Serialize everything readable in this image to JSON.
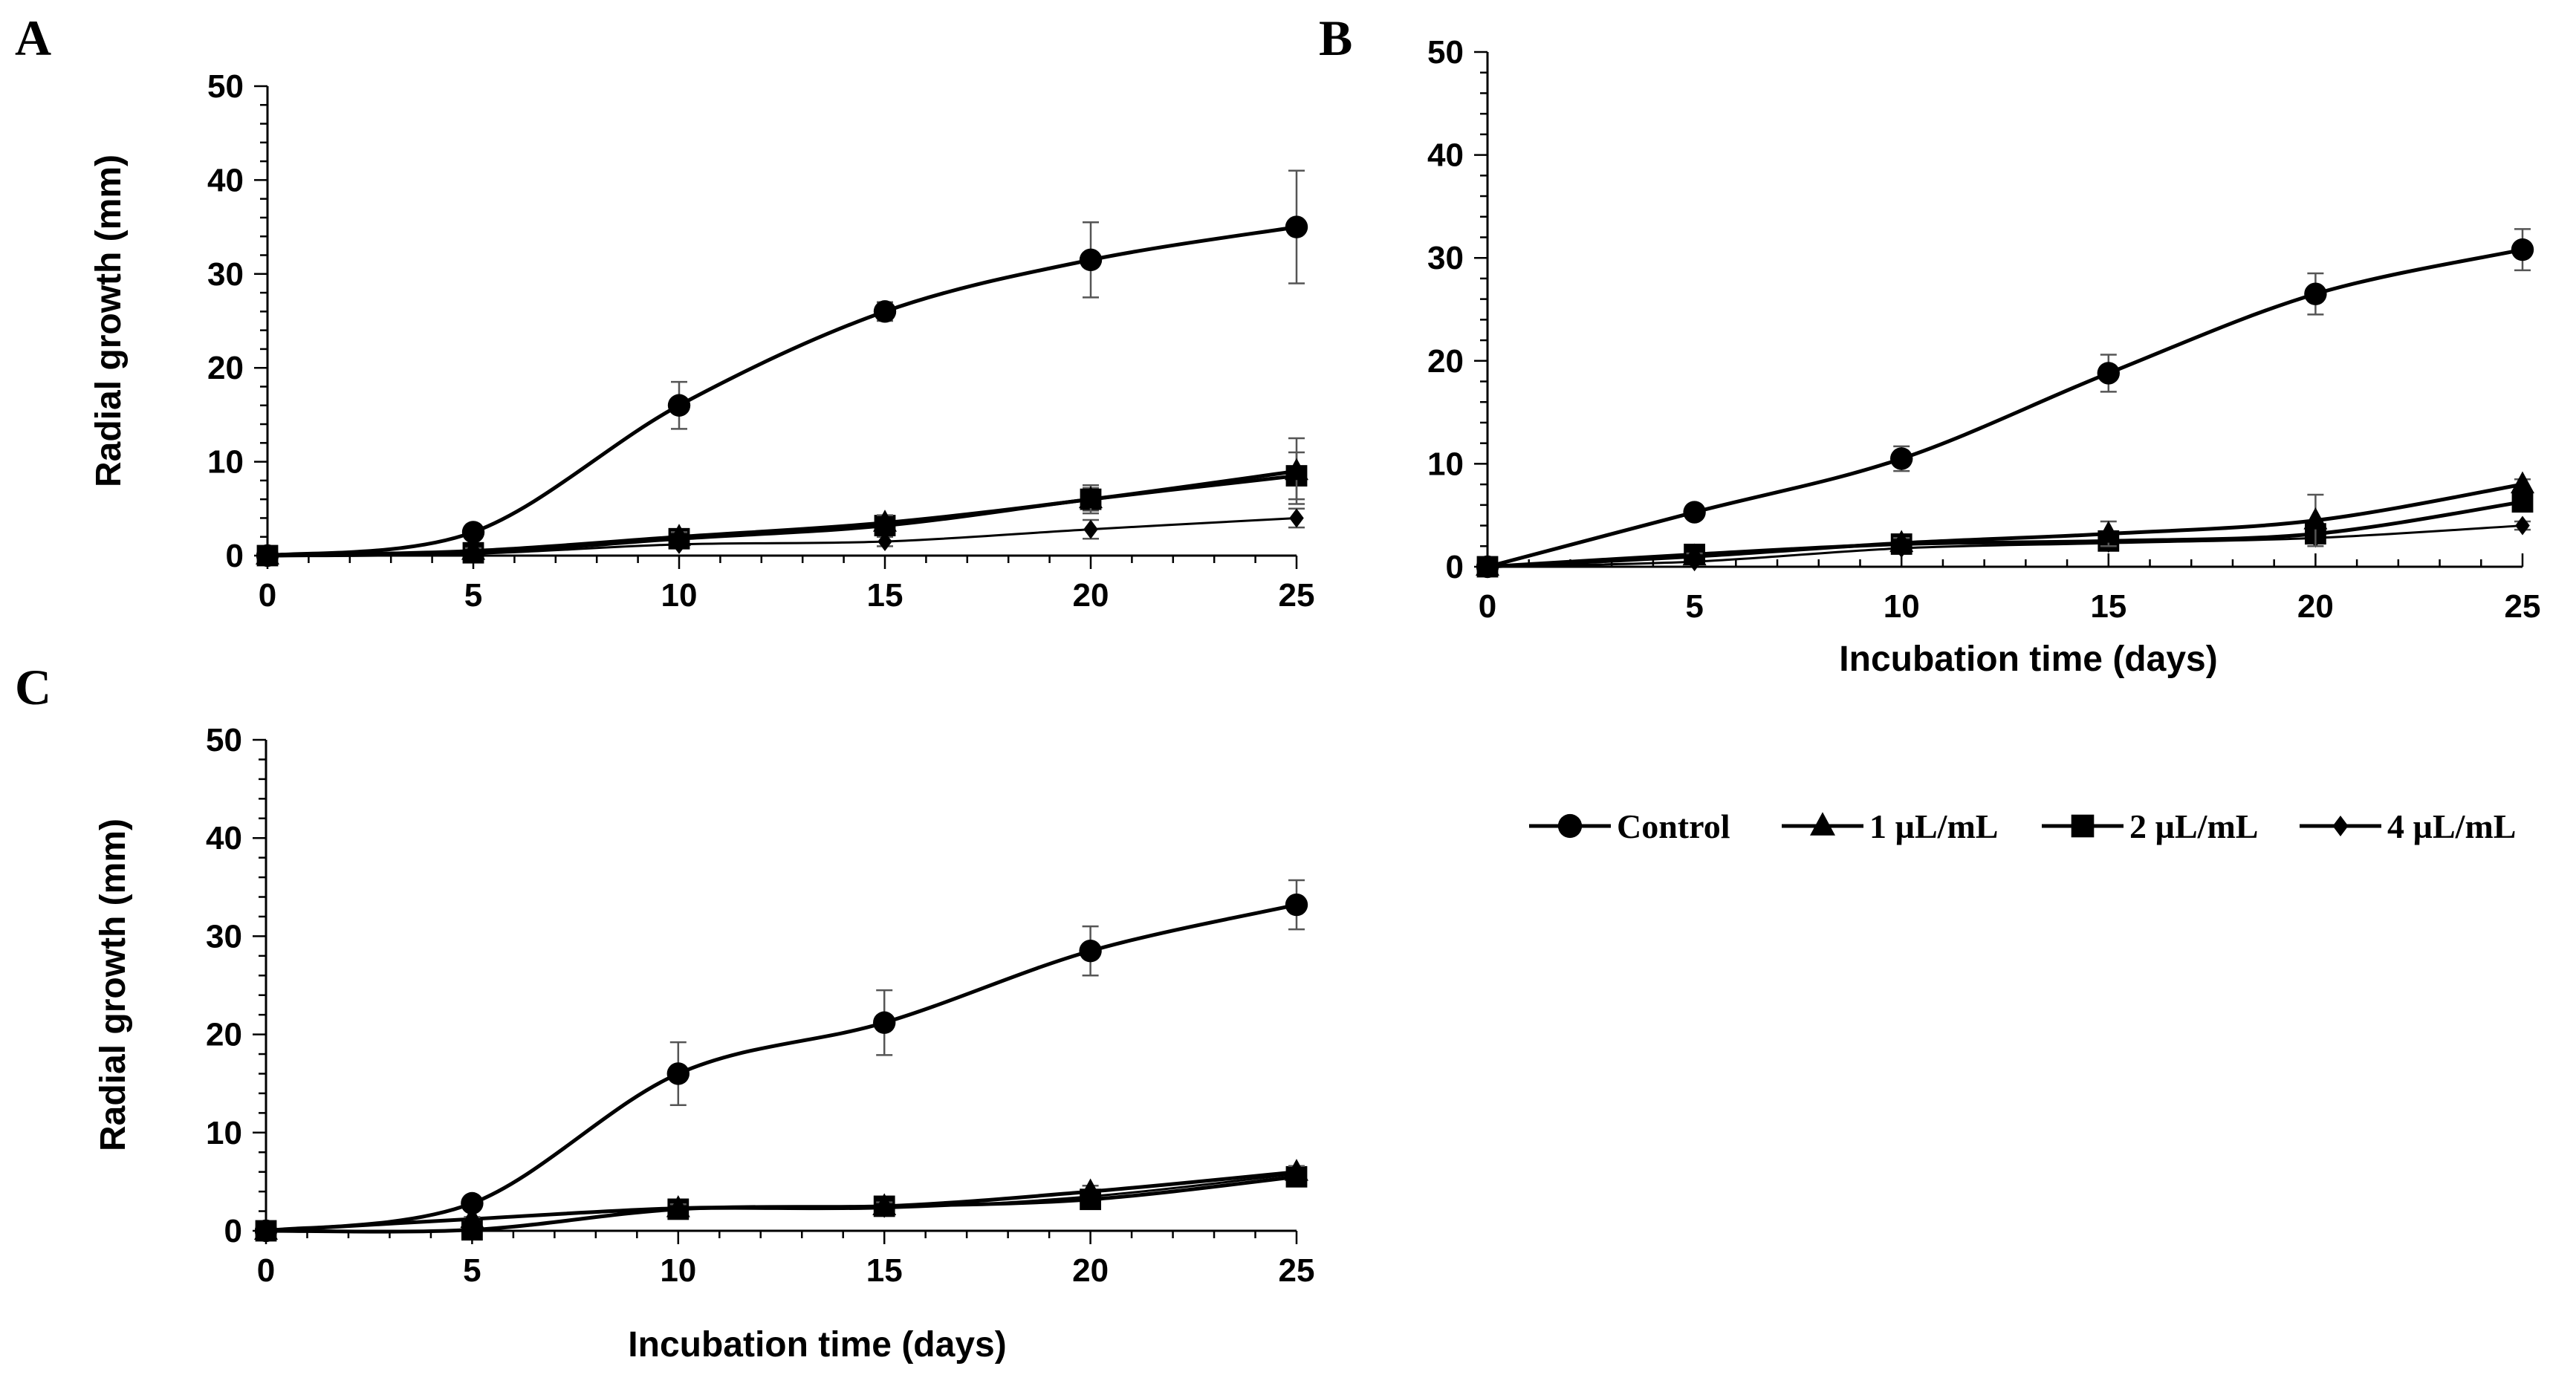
{
  "chart_data": [
    {
      "panel": "A",
      "type": "line",
      "xlabel": "",
      "ylabel": "Radial growth (mm)",
      "xlim": [
        0,
        25
      ],
      "ylim": [
        0,
        50
      ],
      "x": [
        0,
        5,
        10,
        15,
        20,
        25
      ],
      "xticks": [
        "0",
        "5",
        "10",
        "15",
        "20",
        "25"
      ],
      "yticks": [
        "0",
        "10",
        "20",
        "30",
        "40",
        "50"
      ],
      "series": [
        {
          "name": "Control",
          "marker": "circle",
          "stroke": 5,
          "values": [
            0,
            2.5,
            16,
            26,
            31.5,
            35
          ],
          "errors": [
            0,
            0.5,
            2.5,
            1,
            4,
            6
          ]
        },
        {
          "name": "1 µL/mL",
          "marker": "triangle",
          "stroke": 5,
          "values": [
            0,
            0.5,
            2,
            3.5,
            6,
            9
          ],
          "errors": [
            0,
            0.3,
            0.5,
            0.8,
            1.5,
            3.5
          ]
        },
        {
          "name": "2 µL/mL",
          "marker": "square",
          "stroke": 5,
          "values": [
            0,
            0.3,
            1.8,
            3.2,
            6,
            8.5
          ],
          "errors": [
            0,
            0.3,
            0.5,
            0.8,
            1.2,
            2.5
          ]
        },
        {
          "name": "4 µL/mL",
          "marker": "diamond",
          "stroke": 3,
          "values": [
            0,
            0.2,
            1.2,
            1.5,
            2.8,
            4
          ],
          "errors": [
            0,
            0.2,
            0.3,
            0.5,
            1,
            1
          ]
        }
      ]
    },
    {
      "panel": "B",
      "type": "line",
      "xlabel": "Incubation time (days)",
      "ylabel": "",
      "xlim": [
        0,
        25
      ],
      "ylim": [
        0,
        50
      ],
      "x": [
        0,
        5,
        10,
        15,
        20,
        25
      ],
      "xticks": [
        "0",
        "5",
        "10",
        "15",
        "20",
        "25"
      ],
      "yticks": [
        "0",
        "10",
        "20",
        "30",
        "40",
        "50"
      ],
      "series": [
        {
          "name": "Control",
          "marker": "circle",
          "stroke": 5,
          "values": [
            0,
            5.3,
            10.5,
            18.8,
            26.5,
            30.8
          ],
          "errors": [
            0,
            0.5,
            1.2,
            1.8,
            2,
            2
          ]
        },
        {
          "name": "1 µL/mL",
          "marker": "triangle",
          "stroke": 5,
          "values": [
            0,
            1,
            2.3,
            3.2,
            4.5,
            8
          ],
          "errors": [
            0,
            0.3,
            0.5,
            1.2,
            2.5,
            0.5
          ]
        },
        {
          "name": "2 µL/mL",
          "marker": "square",
          "stroke": 5,
          "values": [
            0,
            1.2,
            2.2,
            2.5,
            3.2,
            6.3
          ],
          "errors": [
            0,
            0.3,
            0.5,
            0.8,
            0.8,
            0.8
          ]
        },
        {
          "name": "4 µL/mL",
          "marker": "diamond",
          "stroke": 3,
          "values": [
            0,
            0.5,
            1.8,
            2.3,
            2.8,
            4
          ],
          "errors": [
            0,
            0.2,
            0.3,
            0.5,
            0.5,
            0.4
          ]
        }
      ]
    },
    {
      "panel": "C",
      "type": "line",
      "xlabel": "Incubation time (days)",
      "ylabel": "Radial growth (mm)",
      "xlim": [
        0,
        25
      ],
      "ylim": [
        0,
        50
      ],
      "x": [
        0,
        5,
        10,
        15,
        20,
        25
      ],
      "xticks": [
        "0",
        "5",
        "10",
        "15",
        "20",
        "25"
      ],
      "yticks": [
        "0",
        "10",
        "20",
        "30",
        "40",
        "50"
      ],
      "series": [
        {
          "name": "Control",
          "marker": "circle",
          "stroke": 5,
          "values": [
            0,
            2.8,
            16,
            21.2,
            28.5,
            33.2
          ],
          "errors": [
            0,
            0.3,
            3.2,
            3.3,
            2.5,
            2.5
          ]
        },
        {
          "name": "1 µL/mL",
          "marker": "triangle",
          "stroke": 5,
          "values": [
            0,
            1.2,
            2.3,
            2.5,
            4,
            6
          ],
          "errors": [
            0,
            0.2,
            0.4,
            0.4,
            0.6,
            0.6
          ]
        },
        {
          "name": "2 µL/mL",
          "marker": "square",
          "stroke": 5,
          "values": [
            0,
            0.1,
            2.2,
            2.5,
            3.2,
            5.5
          ],
          "errors": [
            0,
            0.2,
            0.4,
            0.4,
            0.5,
            0.5
          ]
        },
        {
          "name": "4 µL/mL",
          "marker": "diamond",
          "stroke": 3,
          "values": [
            0,
            1.2,
            2.2,
            2.3,
            3.5,
            5.8
          ],
          "errors": [
            0,
            0.2,
            0.3,
            0.3,
            0.5,
            0.5
          ]
        }
      ]
    }
  ],
  "legend": {
    "items": [
      {
        "label": "Control",
        "marker": "circle"
      },
      {
        "label": "1 µL/mL",
        "marker": "triangle"
      },
      {
        "label": "2 µL/mL",
        "marker": "square"
      },
      {
        "label": "4 µL/mL",
        "marker": "diamond"
      }
    ]
  },
  "colors": {
    "ink": "#000000",
    "background": "#ffffff",
    "errorbar": "#555555"
  }
}
